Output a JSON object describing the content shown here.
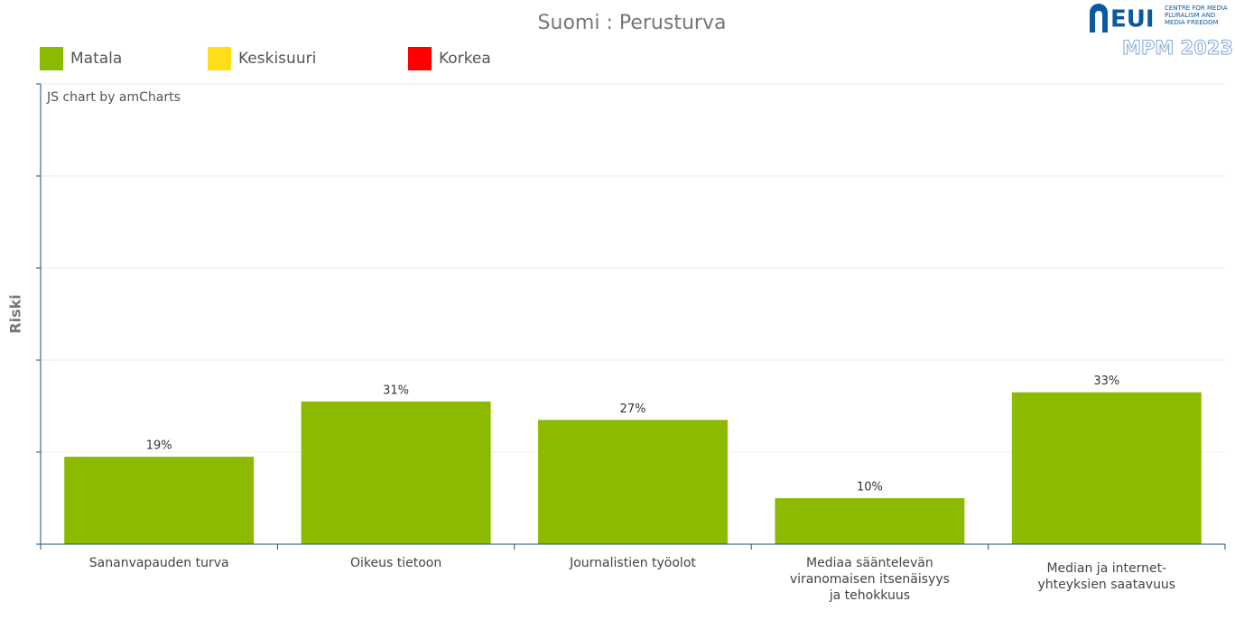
{
  "chart_data": {
    "type": "bar",
    "title": "Suomi : Perusturva",
    "y_label": "Riski",
    "credit": "JS chart by amCharts",
    "logo": {
      "name": "EUI",
      "subtitle": "CENTRE FOR MEDIA PLURALISM AND MEDIA FREEDOM",
      "edition": "MPM 2023"
    },
    "legend": [
      {
        "name": "Matala",
        "color": "#8cba00"
      },
      {
        "name": "Keskisuuri",
        "color": "#ffdd17"
      },
      {
        "name": "Korkea",
        "color": "#ff0000"
      }
    ],
    "categories": [
      "Sananvapauden turva",
      "Oikeus tietoon",
      "Journalistien työolot",
      "Mediaa sääntelevän viranomaisen itsenäisyys ja tehokkuus",
      "Median ja internet-yhteyksien saatavuus"
    ],
    "values": [
      19,
      31,
      27,
      10,
      33
    ],
    "value_labels": [
      "19%",
      "31%",
      "27%",
      "10%",
      "33%"
    ],
    "color": "#8cba00",
    "ylim": [
      0,
      100
    ],
    "yticks": [
      0,
      20,
      40,
      60,
      80,
      100
    ],
    "grid": true
  }
}
